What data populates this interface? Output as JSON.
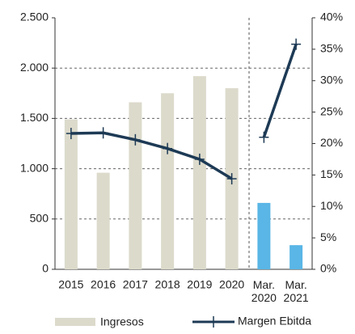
{
  "chart_data": {
    "type": "bar-line",
    "categories": [
      "2015",
      "2016",
      "2017",
      "2018",
      "2019",
      "2020",
      "Mar.\n2020",
      "Mar.\n2021"
    ],
    "series": [
      {
        "name": "Ingresos",
        "type": "bar",
        "color": "#dcdacb",
        "colors": [
          "#dcdacb",
          "#dcdacb",
          "#dcdacb",
          "#dcdacb",
          "#dcdacb",
          "#dcdacb",
          "#5ab6e6",
          "#5ab6e6"
        ],
        "values": [
          1490,
          960,
          1660,
          1750,
          1920,
          1800,
          660,
          240
        ]
      },
      {
        "name": "Margen Ebitda",
        "type": "line",
        "axis": "y2",
        "color": "#1d3a55",
        "values": [
          21.6,
          21.7,
          20.6,
          19.2,
          17.5,
          14.4,
          null,
          null
        ]
      },
      {
        "type": "line",
        "axis": "y2",
        "color": "#1d3a55",
        "values": [
          null,
          null,
          null,
          null,
          null,
          null,
          21.0,
          35.8
        ]
      }
    ],
    "ylim": [
      0,
      2500
    ],
    "yticks": [
      0,
      500,
      {
        "value": 1000,
        "label": "1.000"
      },
      {
        "value": 1500,
        "label": "1.500"
      },
      {
        "value": 2000,
        "label": "2.000"
      },
      {
        "value": 2500,
        "label": "2.500"
      }
    ],
    "y2lim": [
      0,
      40
    ],
    "y2ticks": [
      {
        "value": 0,
        "label": "0%"
      },
      {
        "value": 5,
        "label": "5%"
      },
      {
        "value": 10,
        "label": "10%"
      },
      {
        "value": 15,
        "label": "15%"
      },
      {
        "value": 20,
        "label": "20%"
      },
      {
        "value": 25,
        "label": "25%"
      },
      {
        "value": 30,
        "label": "30%"
      },
      {
        "value": 35,
        "label": "35%"
      },
      {
        "value": 40,
        "label": "40%"
      }
    ],
    "grid": true
  }
}
